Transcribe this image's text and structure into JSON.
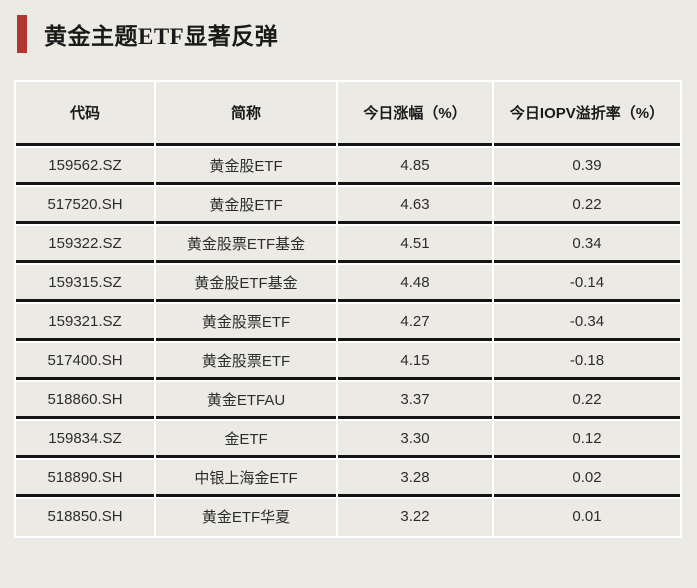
{
  "colors": {
    "accent_red": "#B0362F",
    "page_background": "#ECEAE5",
    "cell_background": "#ECEAE5",
    "grid_white": "#FFFFFF",
    "row_border_dark": "#151515",
    "text_dark": "#1A1A1A",
    "text_body": "#2D2D2D"
  },
  "chart_data": {
    "type": "table",
    "title": "黄金主题ETF显著反弹",
    "columns": [
      "代码",
      "简称",
      "今日涨幅（%）",
      "今日IOPV溢折率（%）"
    ],
    "rows": [
      [
        "159562.SZ",
        "黄金股ETF",
        "4.85",
        "0.39"
      ],
      [
        "517520.SH",
        "黄金股ETF",
        "4.63",
        "0.22"
      ],
      [
        "159322.SZ",
        "黄金股票ETF基金",
        "4.51",
        "0.34"
      ],
      [
        "159315.SZ",
        "黄金股ETF基金",
        "4.48",
        "-0.14"
      ],
      [
        "159321.SZ",
        "黄金股票ETF",
        "4.27",
        "-0.34"
      ],
      [
        "517400.SH",
        "黄金股票ETF",
        "4.15",
        "-0.18"
      ],
      [
        "518860.SH",
        "黄金ETFAU",
        "3.37",
        "0.22"
      ],
      [
        "159834.SZ",
        "金ETF",
        "3.30",
        "0.12"
      ],
      [
        "518890.SH",
        "中银上海金ETF",
        "3.28",
        "0.02"
      ],
      [
        "518850.SH",
        "黄金ETF华夏",
        "3.22",
        "0.01"
      ]
    ]
  }
}
